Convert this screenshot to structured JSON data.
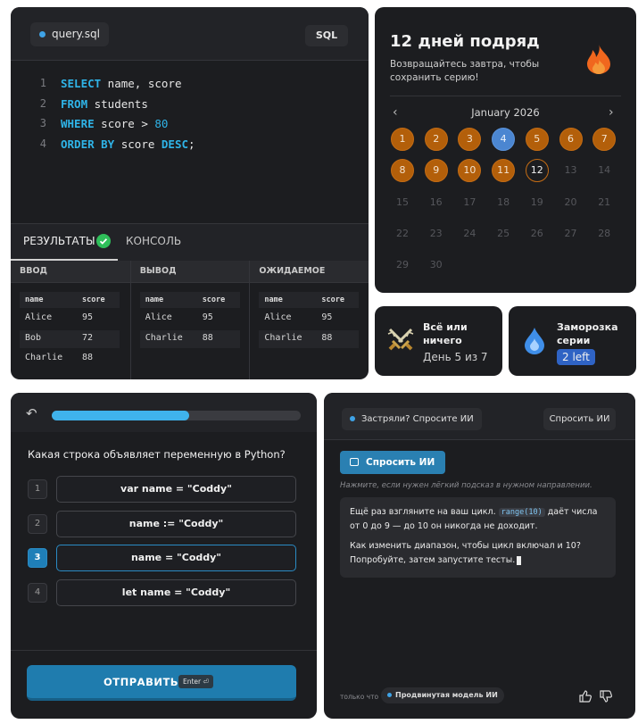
{
  "editor": {
    "file": "query.sql",
    "lang": "SQL",
    "lines": [
      {
        "number": 1,
        "tokens": [
          {
            "text": "SELECT",
            "role": "keyword"
          },
          {
            "text": " name, score",
            "role": "plain"
          }
        ]
      },
      {
        "number": 2,
        "tokens": [
          {
            "text": "FROM",
            "role": "keyword"
          },
          {
            "text": " students",
            "role": "plain"
          }
        ]
      },
      {
        "number": 3,
        "tokens": [
          {
            "text": "WHERE",
            "role": "keyword"
          },
          {
            "text": " score > ",
            "role": "plain"
          },
          {
            "text": "80",
            "role": "number"
          }
        ]
      },
      {
        "number": 4,
        "tokens": [
          {
            "text": "ORDER BY",
            "role": "keyword"
          },
          {
            "text": " score ",
            "role": "plain"
          },
          {
            "text": "DESC",
            "role": "keyword"
          },
          {
            "text": ";",
            "role": "plain"
          }
        ]
      }
    ]
  },
  "results": {
    "tabs": [
      {
        "label": "РЕЗУЛЬТАТЫ",
        "active": true
      },
      {
        "label": "КОНСОЛЬ",
        "active": false
      }
    ],
    "tables": [
      {
        "title": "ВВОД",
        "columns": [
          "name",
          "score"
        ],
        "rows": [
          [
            "Alice",
            95
          ],
          [
            "Bob",
            72
          ],
          [
            "Charlie",
            88
          ]
        ]
      },
      {
        "title": "ВЫВОД",
        "columns": [
          "name",
          "score"
        ],
        "rows": [
          [
            "Alice",
            95
          ],
          [
            "Charlie",
            88
          ]
        ]
      },
      {
        "title": "ОЖИДАЕМОЕ",
        "columns": [
          "name",
          "score"
        ],
        "rows": [
          [
            "Alice",
            95
          ],
          [
            "Charlie",
            88
          ]
        ]
      }
    ]
  },
  "streak": {
    "title": "12 дней подряд",
    "subtitle": "Возвращайтесь завтра, чтобы сохранить серию!",
    "month": "January 2026",
    "days": [
      {
        "day": 1,
        "state": "done"
      },
      {
        "day": 2,
        "state": "done"
      },
      {
        "day": 3,
        "state": "done"
      },
      {
        "day": 4,
        "state": "freeze"
      },
      {
        "day": 5,
        "state": "done"
      },
      {
        "day": 6,
        "state": "done"
      },
      {
        "day": 7,
        "state": "done"
      },
      {
        "day": 8,
        "state": "done"
      },
      {
        "day": 9,
        "state": "done"
      },
      {
        "day": 10,
        "state": "done"
      },
      {
        "day": 11,
        "state": "done"
      },
      {
        "day": 12,
        "state": "today"
      },
      {
        "day": 13,
        "state": "future"
      },
      {
        "day": 14,
        "state": "future"
      },
      {
        "day": 15,
        "state": "future"
      },
      {
        "day": 16,
        "state": "future"
      },
      {
        "day": 17,
        "state": "future"
      },
      {
        "day": 18,
        "state": "future"
      },
      {
        "day": 19,
        "state": "future"
      },
      {
        "day": 20,
        "state": "future"
      },
      {
        "day": 21,
        "state": "future"
      },
      {
        "day": 22,
        "state": "future"
      },
      {
        "day": 23,
        "state": "future"
      },
      {
        "day": 24,
        "state": "future"
      },
      {
        "day": 25,
        "state": "future"
      },
      {
        "day": 26,
        "state": "future"
      },
      {
        "day": 27,
        "state": "future"
      },
      {
        "day": 28,
        "state": "future"
      },
      {
        "day": 29,
        "state": "future"
      },
      {
        "day": 30,
        "state": "future"
      }
    ],
    "cards": [
      {
        "title": "Всё или ничего",
        "detail": "День 5 из 7"
      },
      {
        "title": "Заморозка серии",
        "badge": "2 left"
      }
    ]
  },
  "quiz": {
    "question": "Какая строка объявляет переменную в Python?",
    "options": [
      {
        "number": 1,
        "text": "var name = \"Coddy\""
      },
      {
        "number": 2,
        "text": "name := \"Coddy\""
      },
      {
        "number": 3,
        "text": "name = \"Coddy\""
      },
      {
        "number": 4,
        "text": "let name = \"Coddy\""
      }
    ],
    "selected": 3,
    "submit": "ОТПРАВИТЬ",
    "key": "Enter ⏎"
  },
  "assistant": {
    "chip": "Застряли? Спросите ИИ",
    "header_button": "Спросить ИИ",
    "ask_button": "Спросить ИИ",
    "hint": "Нажмите, если нужен лёгкий подсказ в нужном направлении.",
    "message": [
      [
        {
          "text": "Ещё раз взгляните на ваш цикл. ",
          "role": "plain"
        },
        {
          "text": "range(10)",
          "role": "code"
        },
        {
          "text": " даёт числа от 0 до 9 — до 10 он никогда не доходит.",
          "role": "plain"
        }
      ],
      [
        {
          "text": "Как изменить диапазон, чтобы цикл включал и 10? Попробуйте, затем запустите тесты.",
          "role": "plain"
        }
      ]
    ],
    "time": "только что",
    "model": "Продвинутая модель ИИ"
  }
}
